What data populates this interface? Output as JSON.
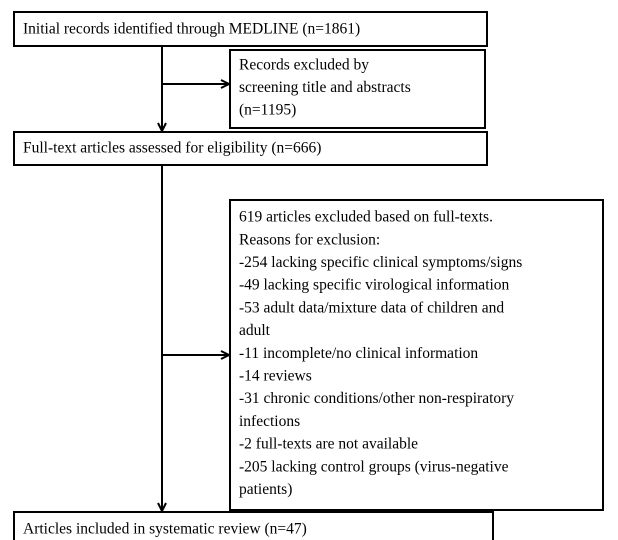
{
  "boxes": [
    {
      "lines": [
        "Initial records identified through MEDLINE (n=1861)"
      ]
    },
    {
      "lines": [
        "Records excluded by",
        "screening title and abstracts",
        "(n=1195)"
      ]
    },
    {
      "lines": [
        "Full-text articles assessed for eligibility (n=666)"
      ]
    },
    {
      "lines": [
        "619 articles excluded based on full-texts.",
        "Reasons for exclusion:",
        "-254 lacking specific clinical symptoms/signs",
        "-49 lacking specific virological information",
        "-53 adult data/mixture data of children and",
        "adult",
        "-11 incomplete/no clinical information",
        "-14 reviews",
        "-31 chronic conditions/other non-respiratory",
        "infections",
        "-2 full-texts are not available",
        "-205 lacking control groups (virus-negative",
        "patients)"
      ]
    },
    {
      "lines": [
        "Articles included in systematic review (n=47)"
      ]
    }
  ]
}
